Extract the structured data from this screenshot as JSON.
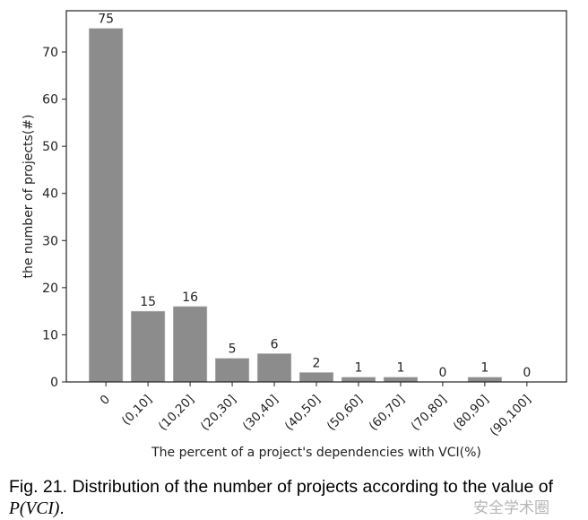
{
  "chart_data": {
    "type": "bar",
    "categories": [
      "0",
      "(0,10]",
      "(10,20]",
      "(20,30]",
      "(30,40]",
      "(40,50]",
      "(50,60]",
      "(60,70]",
      "(70,80]",
      "(80,90]",
      "(90,100]"
    ],
    "values": [
      75,
      15,
      16,
      5,
      6,
      2,
      1,
      1,
      0,
      1,
      0
    ],
    "data_labels": [
      "75",
      "15",
      "16",
      "5",
      "6",
      "2",
      "1",
      "1",
      "0",
      "1",
      "0"
    ],
    "title": "",
    "xlabel": "The percent of a project's dependencies with VCI(%)",
    "ylabel": "the number of projects(#)",
    "ylim": [
      0,
      78.75
    ],
    "yticks": [
      0,
      10,
      20,
      30,
      40,
      50,
      60,
      70
    ],
    "grid": false,
    "bar_color": "#8c8c8c"
  },
  "caption": {
    "text": "Fig. 21. Distribution of the number of projects according to the value of",
    "math": "P(VCI)",
    "suffix": "."
  },
  "watermark": "安全学术圈"
}
